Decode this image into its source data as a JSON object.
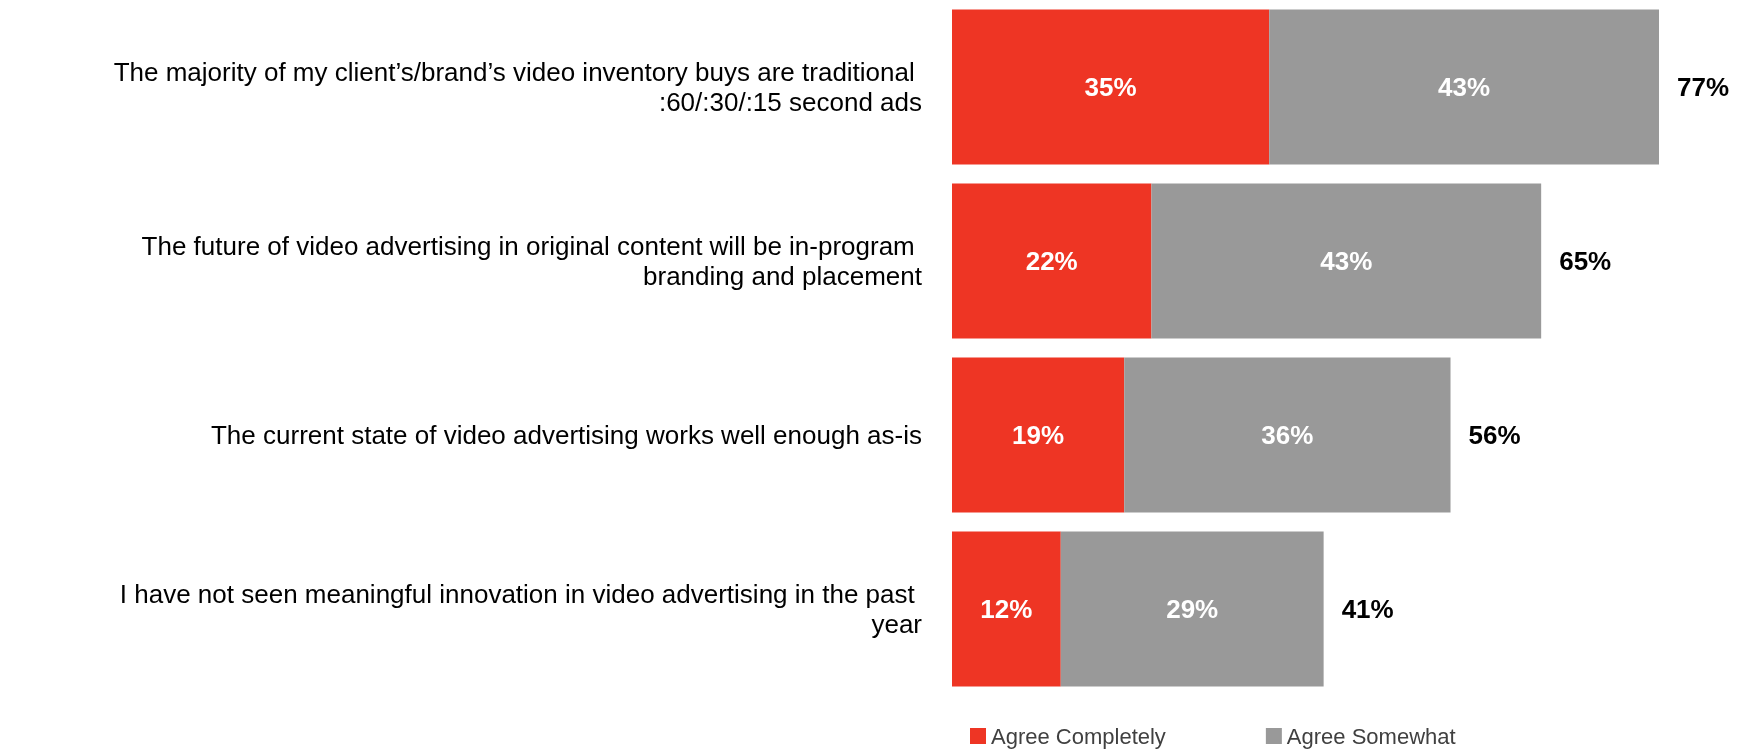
{
  "chart_data": {
    "type": "bar",
    "orientation": "horizontal",
    "stacked": true,
    "legend": "bottom",
    "categories": [
      "The majority of my client’s/brand’s video inventory buys are traditional :60/:30/:15 second ads",
      "The future of video advertising in original content will be in-program branding and placement",
      "The current state of video advertising works well enough as-is",
      "I have not seen meaningful innovation in video advertising in the past year"
    ],
    "series": [
      {
        "name": "Agree Completely",
        "color": "#ee3524",
        "values": [
          35,
          22,
          19,
          12
        ],
        "value_labels": [
          "35%",
          "22%",
          "19%",
          "12%"
        ]
      },
      {
        "name": "Agree Somewhat",
        "color": "#999999",
        "values": [
          43,
          43,
          36,
          29
        ],
        "value_labels": [
          "43%",
          "43%",
          "36%",
          "29%"
        ]
      }
    ],
    "totals": [
      "77%",
      "65%",
      "56%",
      "41%"
    ]
  }
}
